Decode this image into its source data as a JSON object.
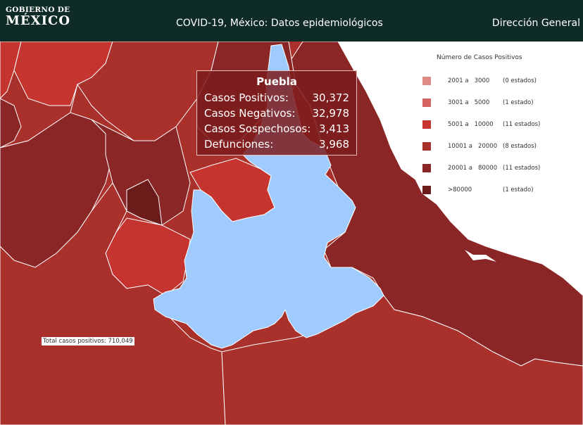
{
  "header": {
    "logo_top": "GOBIERNO DE",
    "logo_bottom": "MÉXICO",
    "title": "COVID-19, México: Datos epidemiológicos",
    "nav_link": "Dirección General"
  },
  "legend": {
    "title": "Número de Casos Positivos",
    "items": [
      {
        "from": "2001 a",
        "to": "3000",
        "count": "(0 estados)",
        "color": "#e08a86"
      },
      {
        "from": "3001 a",
        "to": "5000",
        "count": "(1 estado)",
        "color": "#d4625e"
      },
      {
        "from": "5001 a",
        "to": "10000",
        "count": "(11 estados)",
        "color": "#c63430"
      },
      {
        "from": "10001 a",
        "to": "20000",
        "count": "(8 estados)",
        "color": "#a9302b"
      },
      {
        "from": "20001 a",
        "to": "80000",
        "count": "(11 estados)",
        "color": "#8a2626"
      },
      {
        "from": ">80000",
        "to": "",
        "count": "(1 estado)",
        "color": "#6c1b1b"
      }
    ]
  },
  "tooltip": {
    "state": "Puebla",
    "rows": [
      {
        "label": "Casos Positivos:",
        "value": "30,372"
      },
      {
        "label": "Casos Negativos:",
        "value": "32,978"
      },
      {
        "label": "Casos Sospechosos:",
        "value": "3,413"
      },
      {
        "label": "Defunciones:",
        "value": "3,968"
      }
    ]
  },
  "total_label": "Total casos positivos: 710,049",
  "colors": {
    "highlight": "#9fcbff",
    "header_bg": "#0f2b26",
    "water": "#ffffff"
  }
}
